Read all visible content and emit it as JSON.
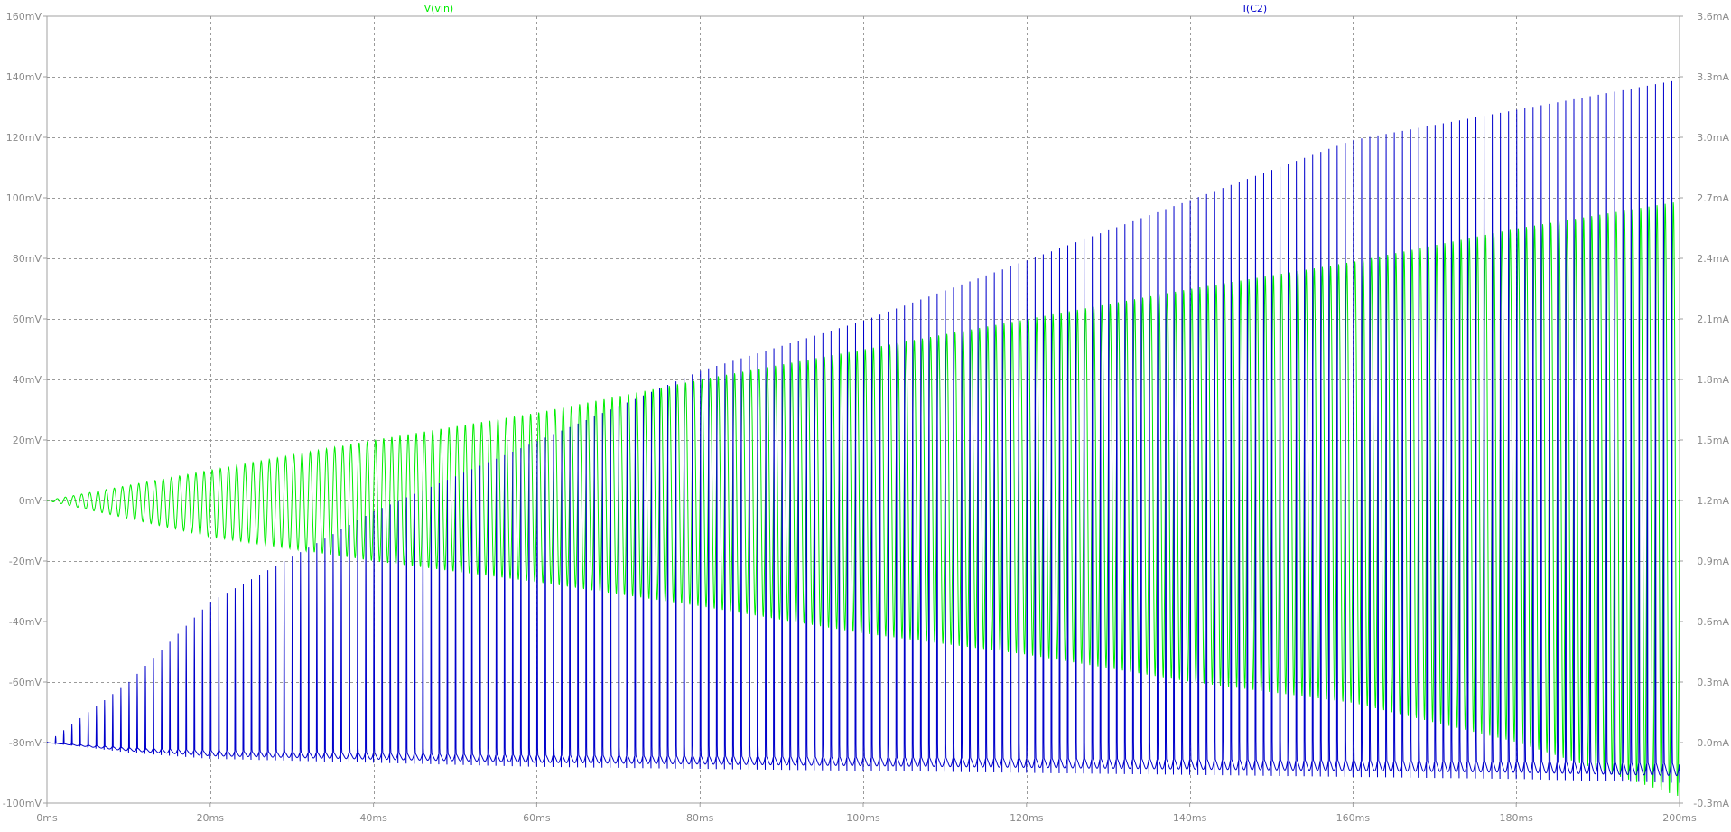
{
  "chart_data": {
    "type": "line",
    "grid": true,
    "x": {
      "range": [
        0,
        200
      ],
      "unit": "ms",
      "ticks": [
        0,
        20,
        40,
        60,
        80,
        100,
        120,
        140,
        160,
        180,
        200
      ],
      "tick_labels": [
        "0ms",
        "20ms",
        "40ms",
        "60ms",
        "80ms",
        "100ms",
        "120ms",
        "140ms",
        "160ms",
        "180ms",
        "200ms"
      ]
    },
    "y_left": {
      "range": [
        -100,
        160
      ],
      "unit": "mV",
      "ticks": [
        -100,
        -80,
        -60,
        -40,
        -20,
        0,
        20,
        40,
        60,
        80,
        100,
        120,
        140,
        160
      ],
      "tick_labels": [
        "-100mV",
        "-80mV",
        "-60mV",
        "-40mV",
        "-20mV",
        "0mV",
        "20mV",
        "40mV",
        "60mV",
        "80mV",
        "100mV",
        "120mV",
        "140mV",
        "160mV"
      ]
    },
    "y_right": {
      "range": [
        -0.3,
        3.6
      ],
      "unit": "mA",
      "ticks": [
        -0.3,
        0.0,
        0.3,
        0.6,
        0.9,
        1.2,
        1.5,
        1.8,
        2.1,
        2.4,
        2.7,
        3.0,
        3.3,
        3.6
      ],
      "tick_labels": [
        "-0.3mA",
        "0.0mA",
        "0.3mA",
        "0.6mA",
        "0.9mA",
        "1.2mA",
        "1.5mA",
        "1.8mA",
        "2.1mA",
        "2.4mA",
        "2.7mA",
        "3.0mA",
        "3.3mA",
        "3.6mA"
      ]
    },
    "legend_placement": "top",
    "series": [
      {
        "name": "V(vin)",
        "axis": "left",
        "color": "#00ee00",
        "envelope": {
          "t": [
            0,
            20,
            40,
            60,
            80,
            100,
            120,
            140,
            160,
            180,
            200
          ],
          "max": [
            0,
            10,
            20,
            29,
            40,
            50,
            60,
            70,
            79,
            90,
            99
          ],
          "min": [
            0,
            -12,
            -20,
            -27,
            -35,
            -44,
            -51,
            -60,
            -67,
            -80,
            -98
          ]
        }
      },
      {
        "name": "I(C2)",
        "axis": "right",
        "color": "#0000cc",
        "envelope": {
          "t": [
            0,
            10,
            20,
            40,
            60,
            80,
            100,
            120,
            140,
            160,
            180,
            200
          ],
          "max": [
            0.0,
            0.3,
            0.7,
            1.15,
            1.5,
            1.85,
            2.1,
            2.4,
            2.7,
            3.0,
            3.15,
            3.3
          ],
          "min": [
            0.0,
            -0.05,
            -0.08,
            -0.1,
            -0.12,
            -0.13,
            -0.14,
            -0.15,
            -0.16,
            -0.17,
            -0.18,
            -0.2
          ]
        }
      }
    ]
  }
}
